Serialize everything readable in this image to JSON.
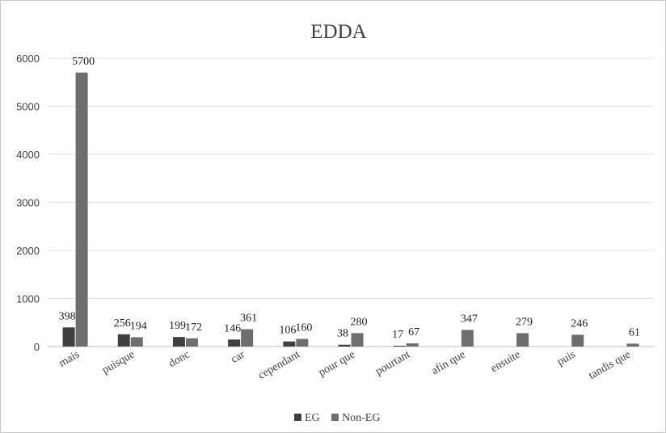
{
  "chart_data": {
    "type": "bar",
    "title": "EDDA",
    "xlabel": "",
    "ylabel": "",
    "ylim": [
      0,
      6000
    ],
    "yticks": [
      0,
      1000,
      2000,
      3000,
      4000,
      5000,
      6000
    ],
    "grid": true,
    "legend_position": "bottom",
    "categories": [
      "mais",
      "puisque",
      "donc",
      "car",
      "cependant",
      "pour que",
      "pourtant",
      "afin que",
      "ensuite",
      "puis",
      "tandis que"
    ],
    "series": [
      {
        "name": "EG",
        "color": "#404040",
        "values": [
          398,
          256,
          199,
          146,
          106,
          38,
          17,
          null,
          null,
          null,
          null
        ],
        "labels": [
          "398",
          "256",
          "199",
          "146",
          "106",
          "38",
          "17",
          "",
          "",
          "",
          ""
        ]
      },
      {
        "name": "Non-EG",
        "color": "#6e6e6e",
        "values": [
          5700,
          194,
          172,
          361,
          160,
          280,
          67,
          347,
          279,
          246,
          61
        ],
        "labels": [
          "5700",
          "194",
          "172",
          "361",
          "160",
          "280",
          "67",
          "347",
          "279",
          "246",
          "61"
        ]
      }
    ]
  }
}
